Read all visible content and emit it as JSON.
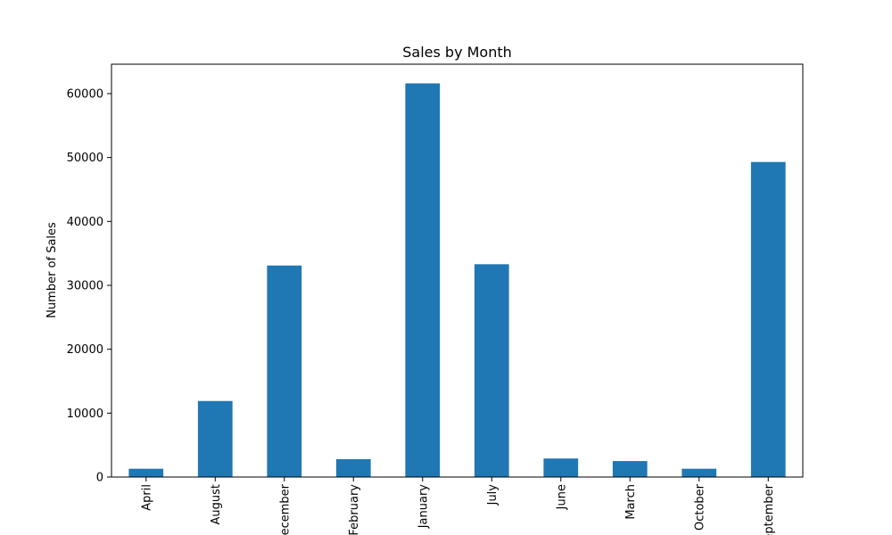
{
  "chart_data": {
    "type": "bar",
    "title": "Sales by Month",
    "xlabel": "",
    "ylabel": "Number of Sales",
    "categories": [
      "April",
      "August",
      "December",
      "February",
      "January",
      "July",
      "June",
      "March",
      "October",
      "September"
    ],
    "values": [
      1300,
      11900,
      33100,
      2800,
      61600,
      33300,
      2900,
      2500,
      1300,
      49300
    ],
    "ylim": [
      0,
      64600
    ],
    "yticks": [
      0,
      10000,
      20000,
      30000,
      40000,
      50000,
      60000
    ],
    "bar_color": "#1f77b4",
    "grid": false,
    "legend": "none"
  }
}
